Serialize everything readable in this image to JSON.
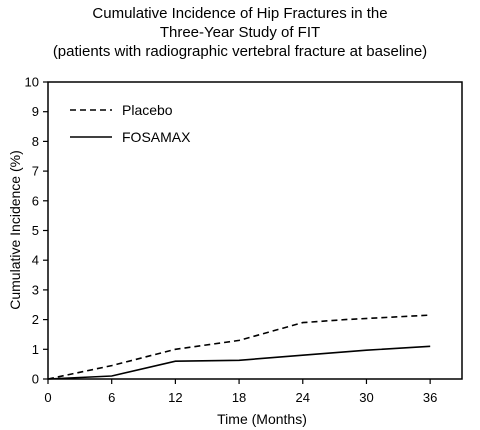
{
  "chart_data": {
    "type": "line",
    "title_lines": [
      "Cumulative Incidence of Hip Fractures in the",
      "Three-Year Study of FIT",
      "(patients with radiographic vertebral fracture at baseline)"
    ],
    "xlabel": "Time (Months)",
    "ylabel": "Cumulative Incidence (%)",
    "xlim": [
      0,
      39
    ],
    "ylim": [
      0,
      10
    ],
    "x_ticks": [
      0,
      6,
      12,
      18,
      24,
      30,
      36
    ],
    "y_ticks": [
      0,
      1,
      2,
      3,
      4,
      5,
      6,
      7,
      8,
      9,
      10
    ],
    "grid": false,
    "legend_position": "top-left",
    "series": [
      {
        "name": "Placebo",
        "line_style": "dashed",
        "color": "#000000",
        "points": [
          [
            0,
            0
          ],
          [
            6,
            0.45
          ],
          [
            12,
            1.0
          ],
          [
            18,
            1.3
          ],
          [
            24,
            1.9
          ],
          [
            28,
            2.0
          ],
          [
            36,
            2.15
          ]
        ]
      },
      {
        "name": "FOSAMAX",
        "line_style": "solid",
        "color": "#000000",
        "points": [
          [
            0,
            0
          ],
          [
            6,
            0.1
          ],
          [
            12,
            0.6
          ],
          [
            18,
            0.63
          ],
          [
            24,
            0.8
          ],
          [
            30,
            0.97
          ],
          [
            36,
            1.1
          ]
        ]
      }
    ]
  }
}
